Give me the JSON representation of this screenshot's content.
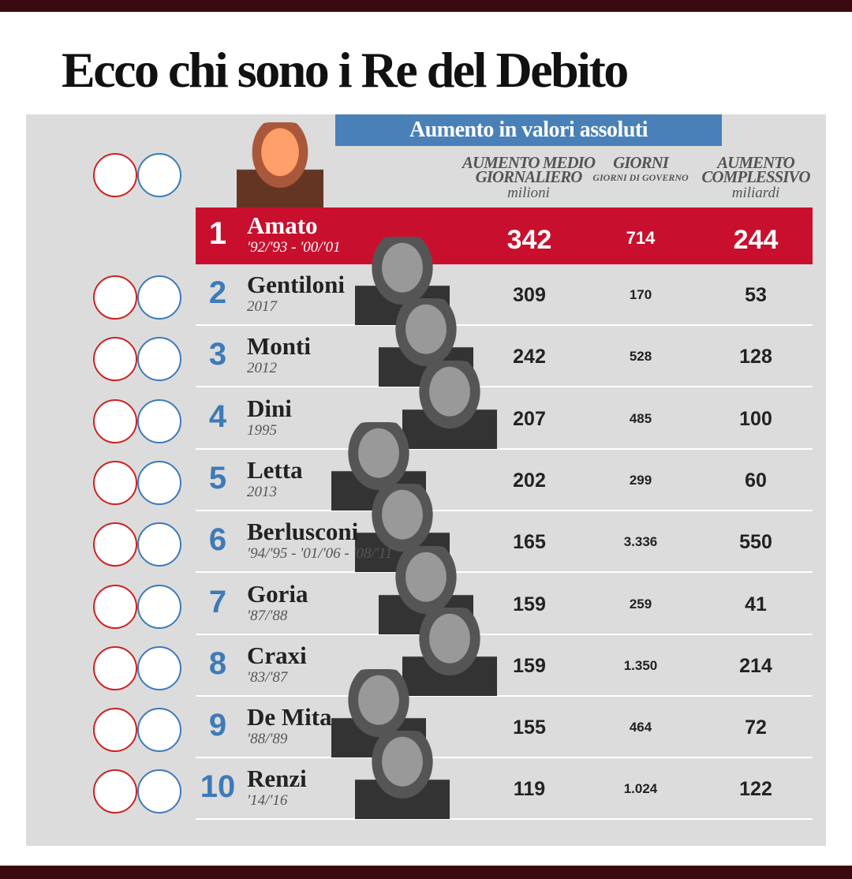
{
  "title": "Ecco chi sono i Re del Debito",
  "banner": "Aumento in valori assoluti",
  "columns": [
    {
      "heading": [
        "AUMENTO MEDIO",
        "GIORNALIERO"
      ],
      "unit": "milioni"
    },
    {
      "heading": [
        "GIORNI"
      ],
      "unit": "GIORNI DI GOVERNO"
    },
    {
      "heading": [
        "AUMENTO",
        "COMPLESSIVO"
      ],
      "unit": "miliardi"
    }
  ],
  "rows": [
    {
      "rank": 1,
      "name": "Amato",
      "period": "'92/'93 - '00/'01",
      "daily": 342,
      "days": 714,
      "total": 244
    },
    {
      "rank": 2,
      "name": "Gentiloni",
      "period": "2017",
      "daily": 309,
      "days": 170,
      "total": 53
    },
    {
      "rank": 3,
      "name": "Monti",
      "period": "2012",
      "daily": 242,
      "days": 528,
      "total": 128
    },
    {
      "rank": 4,
      "name": "Dini",
      "period": "1995",
      "daily": 207,
      "days": 485,
      "total": 100
    },
    {
      "rank": 5,
      "name": "Letta",
      "period": "2013",
      "daily": 202,
      "days": 299,
      "total": 60
    },
    {
      "rank": 6,
      "name": "Berlusconi",
      "period": "'94/'95 - '01/'06 - '08/'11",
      "daily": 165,
      "days": "3.336",
      "total": 550
    },
    {
      "rank": 7,
      "name": "Goria",
      "period": "'87/'88",
      "daily": 159,
      "days": 259,
      "total": 41
    },
    {
      "rank": 8,
      "name": "Craxi",
      "period": "'83/'87",
      "daily": 159,
      "days": "1.350",
      "total": 214
    },
    {
      "rank": 9,
      "name": "De Mita",
      "period": "'88/'89",
      "daily": 155,
      "days": 464,
      "total": 72
    },
    {
      "rank": 10,
      "name": "Renzi",
      "period": "'14/'16",
      "daily": 119,
      "days": "1.024",
      "total": 122
    }
  ]
}
